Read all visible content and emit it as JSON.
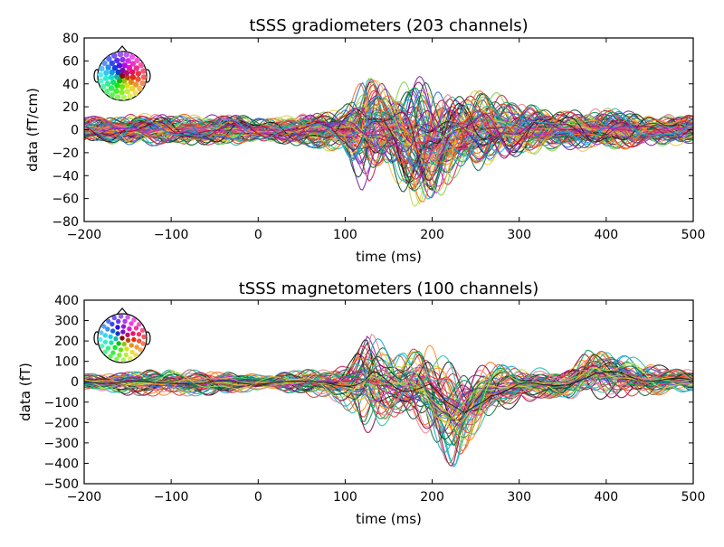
{
  "chart_data": [
    {
      "type": "line",
      "title": "tSSS gradiometers (203 channels)",
      "xlabel": "time (ms)",
      "ylabel": "data (fT/cm)",
      "xlim": [
        -200,
        500
      ],
      "ylim": [
        -80,
        80
      ],
      "xticks": [
        -200,
        -100,
        0,
        100,
        200,
        300,
        400,
        500
      ],
      "yticks": [
        -80,
        -60,
        -40,
        -20,
        0,
        20,
        40,
        60,
        80
      ],
      "xtick_labels": [
        "−200",
        "−100",
        "0",
        "100",
        "200",
        "300",
        "400",
        "500"
      ],
      "ytick_labels": [
        "−80",
        "−60",
        "−40",
        "−20",
        "0",
        "20",
        "40",
        "60",
        "80"
      ],
      "n_channels": 203,
      "series_envelope": {
        "x": [
          -200,
          -150,
          -100,
          -50,
          0,
          50,
          100,
          110,
          125,
          140,
          150,
          170,
          185,
          200,
          230,
          260,
          300,
          350,
          400,
          450,
          500
        ],
        "upper": [
          12,
          15,
          14,
          15,
          12,
          14,
          20,
          35,
          58,
          45,
          35,
          50,
          55,
          45,
          30,
          40,
          25,
          18,
          20,
          15,
          14
        ],
        "lower": [
          -12,
          -15,
          -14,
          -16,
          -12,
          -15,
          -22,
          -40,
          -55,
          -45,
          -30,
          -60,
          -78,
          -70,
          -45,
          -35,
          -25,
          -18,
          -20,
          -15,
          -14
        ]
      },
      "grid": false,
      "legend": "none",
      "inset": "sensor-topomap-top-left"
    },
    {
      "type": "line",
      "title": "tSSS magnetometers (100 channels)",
      "xlabel": "time (ms)",
      "ylabel": "data (fT)",
      "xlim": [
        -200,
        500
      ],
      "ylim": [
        -500,
        400
      ],
      "xticks": [
        -200,
        -100,
        0,
        100,
        200,
        300,
        400,
        500
      ],
      "yticks": [
        -500,
        -400,
        -300,
        -200,
        -100,
        0,
        100,
        200,
        300,
        400
      ],
      "xtick_labels": [
        "−200",
        "−100",
        "0",
        "100",
        "200",
        "300",
        "400",
        "500"
      ],
      "ytick_labels": [
        "−500",
        "−400",
        "−300",
        "−200",
        "−100",
        "0",
        "100",
        "200",
        "300",
        "400"
      ],
      "n_channels": 100,
      "series_envelope": {
        "x": [
          -200,
          -150,
          -100,
          -50,
          0,
          50,
          100,
          115,
          125,
          140,
          160,
          190,
          210,
          230,
          260,
          300,
          350,
          380,
          420,
          460,
          500
        ],
        "upper": [
          40,
          60,
          70,
          60,
          40,
          60,
          100,
          180,
          305,
          220,
          120,
          260,
          150,
          80,
          110,
          80,
          60,
          180,
          140,
          90,
          60
        ],
        "lower": [
          -40,
          -70,
          -80,
          -70,
          -50,
          -60,
          -120,
          -200,
          -300,
          -240,
          -180,
          -280,
          -380,
          -440,
          -200,
          -120,
          -80,
          -100,
          -90,
          -70,
          -50
        ]
      },
      "grid": false,
      "legend": "none",
      "inset": "sensor-topomap-top-left"
    }
  ],
  "palette": [
    "#e8382f",
    "#ff6a21",
    "#ff8c1a",
    "#d6194b",
    "#e53f7a",
    "#8b0a50",
    "#7b1fa2",
    "#a335d6",
    "#2b6fd6",
    "#1ba7d8",
    "#21c0a8",
    "#00a050",
    "#0b6e3f",
    "#114d2a",
    "#7cd24a",
    "#b7e04a",
    "#f0c93b",
    "#f07f8f",
    "#1a1a1a",
    "#a06a5a"
  ]
}
